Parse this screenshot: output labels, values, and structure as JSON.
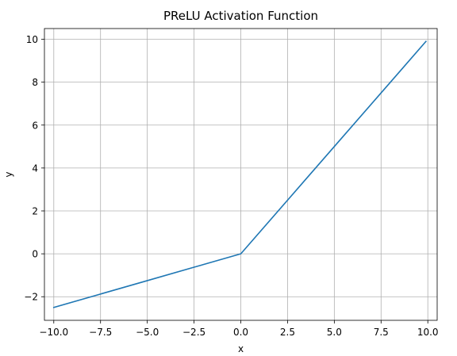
{
  "chart_data": {
    "type": "line",
    "title": "PReLU Activation Function",
    "xlabel": "x",
    "ylabel": "y",
    "xlim": [
      -10.5,
      10.5
    ],
    "ylim": [
      -3.1,
      10.5
    ],
    "x_ticks": [
      -10.0,
      -7.5,
      -5.0,
      -2.5,
      0.0,
      2.5,
      5.0,
      7.5,
      10.0
    ],
    "x_tick_labels": [
      "−10.0",
      "−7.5",
      "−5.0",
      "−2.5",
      "0.0",
      "2.5",
      "5.0",
      "7.5",
      "10.0"
    ],
    "y_ticks": [
      -2,
      0,
      2,
      4,
      6,
      8,
      10
    ],
    "y_tick_labels": [
      "−2",
      "0",
      "2",
      "4",
      "6",
      "8",
      "10"
    ],
    "grid": true,
    "series": [
      {
        "color": "#1f77b4",
        "x": [
          -10.0,
          -7.5,
          -5.0,
          -2.5,
          0.0,
          2.5,
          5.0,
          7.5,
          9.9
        ],
        "y": [
          -2.5,
          -1.875,
          -1.25,
          -0.625,
          0.0,
          2.5,
          5.0,
          7.5,
          9.9
        ]
      }
    ]
  }
}
